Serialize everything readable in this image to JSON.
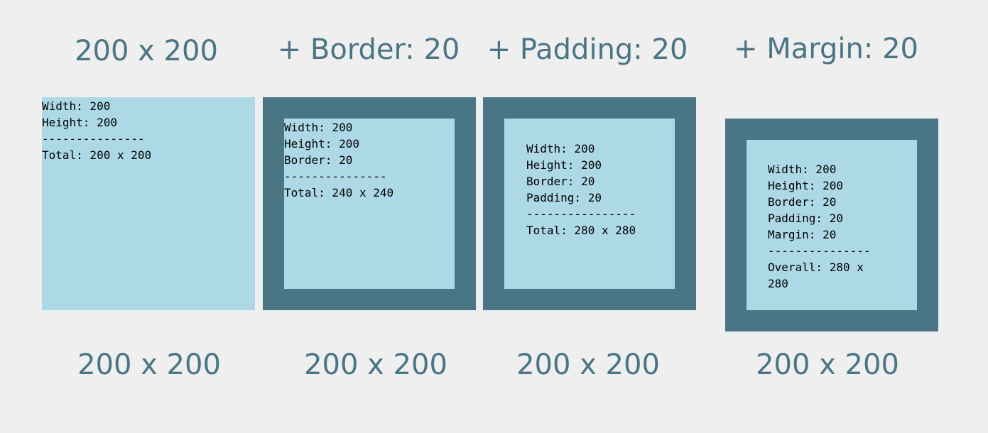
{
  "panels": [
    {
      "title": "200 x 200",
      "caption": "200 x 200",
      "lines": [
        "Width: 200",
        "Height: 200",
        "---------------",
        "Total: 200 x 200"
      ]
    },
    {
      "title": "+ Border: 20",
      "caption": "200 x 200",
      "lines": [
        "Width: 200",
        "Height: 200",
        "Border: 20",
        "---------------",
        "Total: 240 x 240"
      ]
    },
    {
      "title": "+ Padding: 20",
      "caption": "200 x 200",
      "lines": [
        "Width: 200",
        "Height: 200",
        "Border: 20",
        "Padding: 20",
        "----------------",
        "Total: 280 x 280"
      ]
    },
    {
      "title": "+ Margin: 20",
      "caption": "200 x 200",
      "lines": [
        "Width: 200",
        "Height: 200",
        "Border: 20",
        "Padding: 20",
        "Margin: 20",
        "---------------",
        "Overall: 280 x",
        "280"
      ]
    }
  ],
  "colors": {
    "background": "#efefef",
    "box_fill": "#add8e6",
    "border": "#4a7585",
    "heading": "#4a7585"
  }
}
